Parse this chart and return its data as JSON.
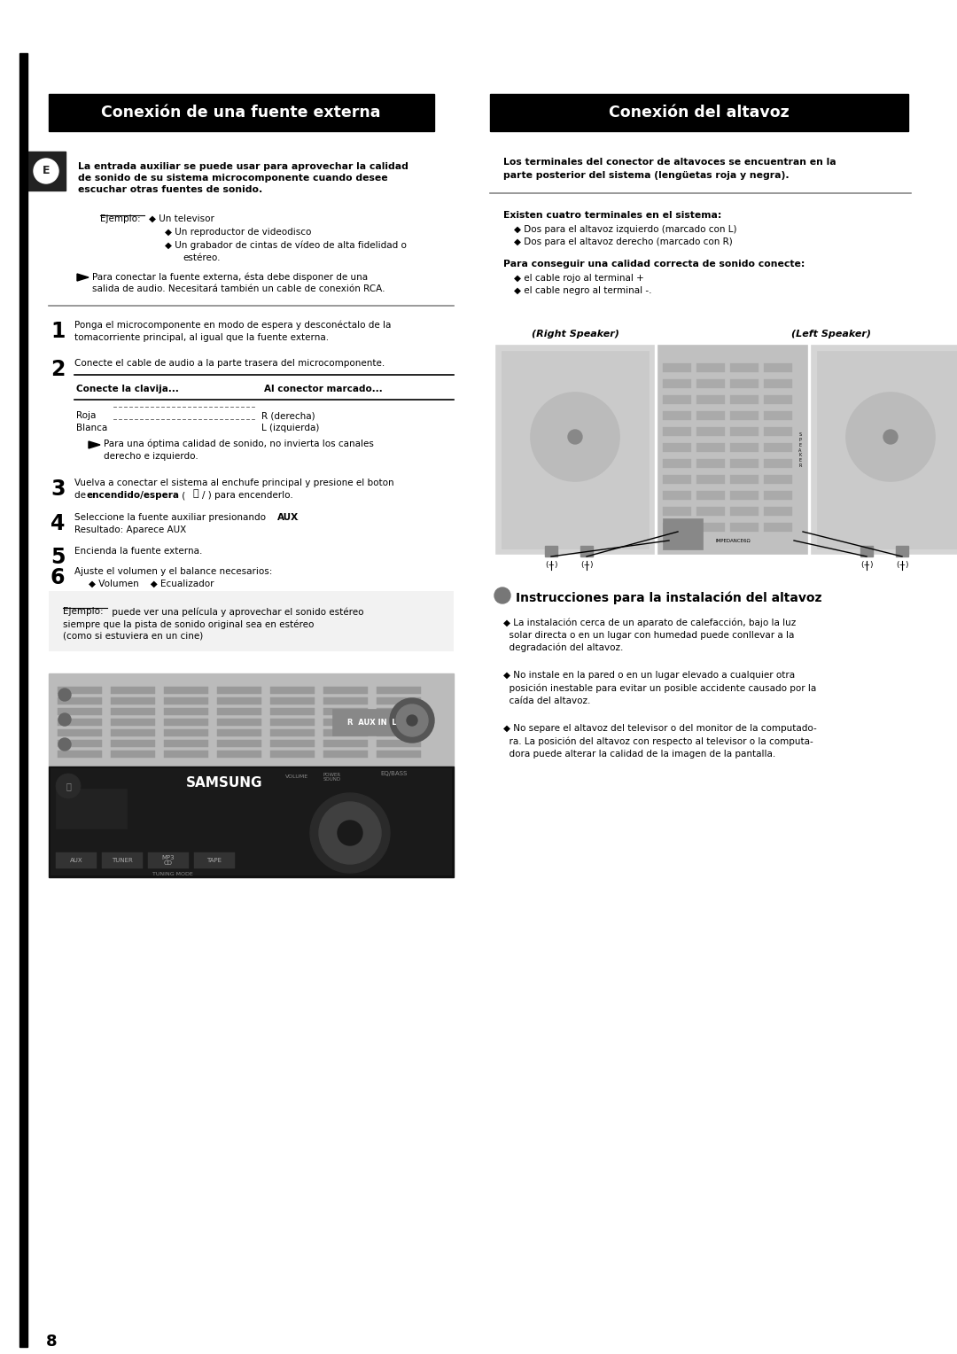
{
  "bg_color": "#ffffff",
  "header1_text": "Conexión de una fuente externa",
  "header2_text": "Conexión del altavoz",
  "header_bg": "#000000",
  "header_fg": "#ffffff",
  "page_number": "8"
}
